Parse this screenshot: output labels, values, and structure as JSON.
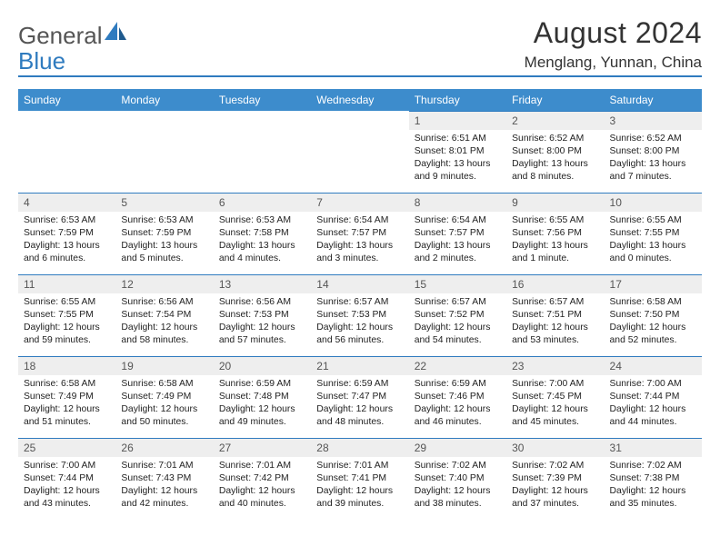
{
  "logo": {
    "text1": "General",
    "text2": "Blue"
  },
  "header": {
    "title": "August 2024",
    "location": "Menglang, Yunnan, China"
  },
  "style": {
    "accent": "#3d8ccc",
    "underline": "#2f7bbf",
    "daynum_bg": "#eeeeee",
    "text": "#222222",
    "page_bg": "#ffffff",
    "logo_gray": "#555555",
    "logo_blue": "#2f7bbf"
  },
  "weekdays": [
    "Sunday",
    "Monday",
    "Tuesday",
    "Wednesday",
    "Thursday",
    "Friday",
    "Saturday"
  ],
  "lead_blanks": 4,
  "days": [
    {
      "n": 1,
      "sr": "6:51 AM",
      "ss": "8:01 PM",
      "dl": "13 hours and 9 minutes."
    },
    {
      "n": 2,
      "sr": "6:52 AM",
      "ss": "8:00 PM",
      "dl": "13 hours and 8 minutes."
    },
    {
      "n": 3,
      "sr": "6:52 AM",
      "ss": "8:00 PM",
      "dl": "13 hours and 7 minutes."
    },
    {
      "n": 4,
      "sr": "6:53 AM",
      "ss": "7:59 PM",
      "dl": "13 hours and 6 minutes."
    },
    {
      "n": 5,
      "sr": "6:53 AM",
      "ss": "7:59 PM",
      "dl": "13 hours and 5 minutes."
    },
    {
      "n": 6,
      "sr": "6:53 AM",
      "ss": "7:58 PM",
      "dl": "13 hours and 4 minutes."
    },
    {
      "n": 7,
      "sr": "6:54 AM",
      "ss": "7:57 PM",
      "dl": "13 hours and 3 minutes."
    },
    {
      "n": 8,
      "sr": "6:54 AM",
      "ss": "7:57 PM",
      "dl": "13 hours and 2 minutes."
    },
    {
      "n": 9,
      "sr": "6:55 AM",
      "ss": "7:56 PM",
      "dl": "13 hours and 1 minute."
    },
    {
      "n": 10,
      "sr": "6:55 AM",
      "ss": "7:55 PM",
      "dl": "13 hours and 0 minutes."
    },
    {
      "n": 11,
      "sr": "6:55 AM",
      "ss": "7:55 PM",
      "dl": "12 hours and 59 minutes."
    },
    {
      "n": 12,
      "sr": "6:56 AM",
      "ss": "7:54 PM",
      "dl": "12 hours and 58 minutes."
    },
    {
      "n": 13,
      "sr": "6:56 AM",
      "ss": "7:53 PM",
      "dl": "12 hours and 57 minutes."
    },
    {
      "n": 14,
      "sr": "6:57 AM",
      "ss": "7:53 PM",
      "dl": "12 hours and 56 minutes."
    },
    {
      "n": 15,
      "sr": "6:57 AM",
      "ss": "7:52 PM",
      "dl": "12 hours and 54 minutes."
    },
    {
      "n": 16,
      "sr": "6:57 AM",
      "ss": "7:51 PM",
      "dl": "12 hours and 53 minutes."
    },
    {
      "n": 17,
      "sr": "6:58 AM",
      "ss": "7:50 PM",
      "dl": "12 hours and 52 minutes."
    },
    {
      "n": 18,
      "sr": "6:58 AM",
      "ss": "7:49 PM",
      "dl": "12 hours and 51 minutes."
    },
    {
      "n": 19,
      "sr": "6:58 AM",
      "ss": "7:49 PM",
      "dl": "12 hours and 50 minutes."
    },
    {
      "n": 20,
      "sr": "6:59 AM",
      "ss": "7:48 PM",
      "dl": "12 hours and 49 minutes."
    },
    {
      "n": 21,
      "sr": "6:59 AM",
      "ss": "7:47 PM",
      "dl": "12 hours and 48 minutes."
    },
    {
      "n": 22,
      "sr": "6:59 AM",
      "ss": "7:46 PM",
      "dl": "12 hours and 46 minutes."
    },
    {
      "n": 23,
      "sr": "7:00 AM",
      "ss": "7:45 PM",
      "dl": "12 hours and 45 minutes."
    },
    {
      "n": 24,
      "sr": "7:00 AM",
      "ss": "7:44 PM",
      "dl": "12 hours and 44 minutes."
    },
    {
      "n": 25,
      "sr": "7:00 AM",
      "ss": "7:44 PM",
      "dl": "12 hours and 43 minutes."
    },
    {
      "n": 26,
      "sr": "7:01 AM",
      "ss": "7:43 PM",
      "dl": "12 hours and 42 minutes."
    },
    {
      "n": 27,
      "sr": "7:01 AM",
      "ss": "7:42 PM",
      "dl": "12 hours and 40 minutes."
    },
    {
      "n": 28,
      "sr": "7:01 AM",
      "ss": "7:41 PM",
      "dl": "12 hours and 39 minutes."
    },
    {
      "n": 29,
      "sr": "7:02 AM",
      "ss": "7:40 PM",
      "dl": "12 hours and 38 minutes."
    },
    {
      "n": 30,
      "sr": "7:02 AM",
      "ss": "7:39 PM",
      "dl": "12 hours and 37 minutes."
    },
    {
      "n": 31,
      "sr": "7:02 AM",
      "ss": "7:38 PM",
      "dl": "12 hours and 35 minutes."
    }
  ],
  "labels": {
    "sunrise": "Sunrise: ",
    "sunset": "Sunset: ",
    "daylight": "Daylight: "
  }
}
